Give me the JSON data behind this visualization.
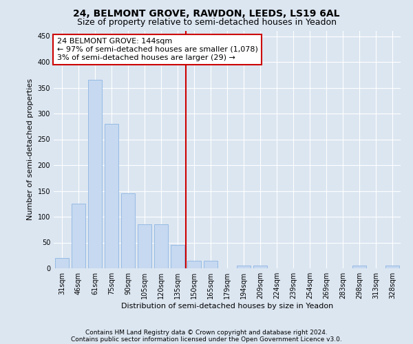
{
  "title": "24, BELMONT GROVE, RAWDON, LEEDS, LS19 6AL",
  "subtitle": "Size of property relative to semi-detached houses in Yeadon",
  "xlabel": "Distribution of semi-detached houses by size in Yeadon",
  "ylabel": "Number of semi-detached properties",
  "footnote1": "Contains HM Land Registry data © Crown copyright and database right 2024.",
  "footnote2": "Contains public sector information licensed under the Open Government Licence v3.0.",
  "annotation_title": "24 BELMONT GROVE: 144sqm",
  "annotation_line1": "← 97% of semi-detached houses are smaller (1,078)",
  "annotation_line2": "3% of semi-detached houses are larger (29) →",
  "categories": [
    "31sqm",
    "46sqm",
    "61sqm",
    "75sqm",
    "90sqm",
    "105sqm",
    "120sqm",
    "135sqm",
    "150sqm",
    "165sqm",
    "179sqm",
    "194sqm",
    "209sqm",
    "224sqm",
    "239sqm",
    "254sqm",
    "269sqm",
    "283sqm",
    "298sqm",
    "313sqm",
    "328sqm"
  ],
  "values": [
    20,
    125,
    365,
    280,
    145,
    85,
    85,
    45,
    15,
    15,
    0,
    5,
    5,
    0,
    0,
    0,
    0,
    0,
    5,
    0,
    5
  ],
  "bar_color": "#c6d9f0",
  "bar_edge_color": "#8db4e2",
  "vline_color": "#cc0000",
  "vline_x_index": 8,
  "ylim": [
    0,
    460
  ],
  "yticks": [
    0,
    50,
    100,
    150,
    200,
    250,
    300,
    350,
    400,
    450
  ],
  "bg_color": "#dce6f1",
  "grid_color": "#ffffff",
  "annotation_box_facecolor": "#ffffff",
  "annotation_box_edgecolor": "#cc0000",
  "title_fontsize": 10,
  "subtitle_fontsize": 9,
  "ylabel_fontsize": 8,
  "xlabel_fontsize": 8,
  "tick_fontsize": 7,
  "annotation_fontsize": 8,
  "footnote_fontsize": 6.5
}
